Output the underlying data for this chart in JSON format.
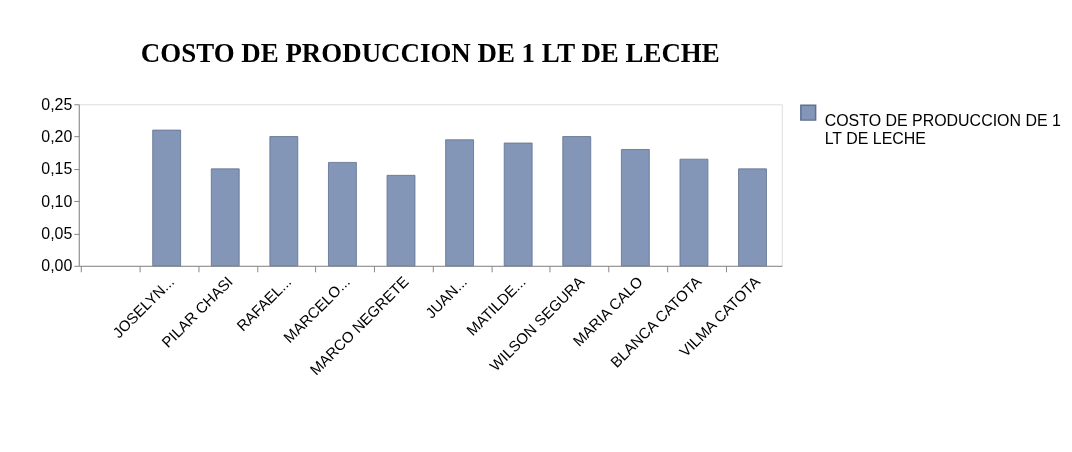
{
  "chart_data": {
    "type": "bar",
    "title": "COSTO DE PRODUCCION DE 1 LT DE LECHE",
    "categories": [
      null,
      "JOSELYN...",
      "PILAR CHASI",
      "RAFAEL...",
      "MARCELO...",
      "MARCO NEGRETE",
      "JUAN...",
      "MATILDE...",
      "WILSON SEGURA",
      "MARIA CALO",
      "BLANCA CATOTA",
      "VILMA CATOTA"
    ],
    "series": [
      {
        "name": "COSTO DE PRODUCCION DE 1 LT DE LECHE",
        "color": "#8496b8",
        "values": [
          null,
          0.21,
          0.15,
          0.2,
          0.16,
          0.14,
          0.195,
          0.19,
          0.2,
          0.18,
          0.165,
          0.15
        ]
      }
    ],
    "ylim": [
      0,
      0.25
    ],
    "yticks": [
      {
        "value": 0,
        "label": "0,00"
      },
      {
        "value": 0.05,
        "label": "0,05"
      },
      {
        "value": 0.1,
        "label": "0,10"
      },
      {
        "value": 0.15,
        "label": "0,15"
      },
      {
        "value": 0.2,
        "label": "0,20"
      },
      {
        "value": 0.25,
        "label": "0,25"
      }
    ],
    "grid": false,
    "legend": "right"
  }
}
